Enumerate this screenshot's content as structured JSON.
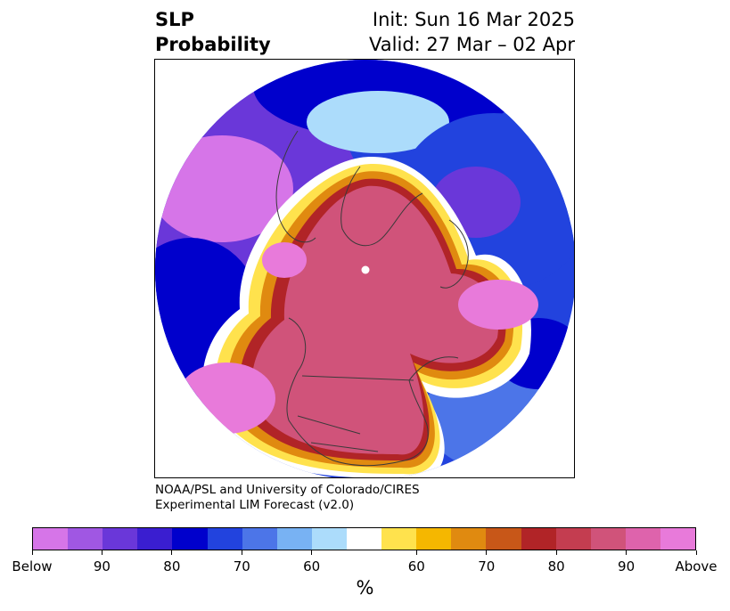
{
  "title": {
    "line1": "SLP",
    "line2": "Probability",
    "init": "Init: Sun 16 Mar 2025",
    "valid": "Valid: 27 Mar – 02 Apr"
  },
  "credit": {
    "line1": "NOAA/PSL and University of Colorado/CIRES",
    "line2": "Experimental LIM Forecast (v2.0)"
  },
  "colorbar": {
    "unit": "%",
    "colors": [
      "#d675e8",
      "#a057e3",
      "#6a37d9",
      "#3a1ed0",
      "#0000cc",
      "#2243de",
      "#4c75e8",
      "#78b2f3",
      "#acdcfb",
      "#ffffff",
      "#ffe24d",
      "#f5b700",
      "#e08a10",
      "#c85718",
      "#b12427",
      "#c43d50",
      "#d0537a",
      "#de63ac",
      "#e87ada"
    ],
    "tick_labels": [
      "Below",
      "90",
      "80",
      "70",
      "60",
      "60",
      "70",
      "80",
      "90",
      "Above"
    ]
  },
  "map": {
    "projection": "north-polar-stereographic",
    "palette": {
      "above_strong": "#e87ada",
      "above_high": "#d0537a",
      "above_mid": "#b12427",
      "above_low": "#e08a10",
      "above_weak": "#ffe24d",
      "neutral": "#ffffff",
      "below_weak": "#acdcfb",
      "below_low": "#4c75e8",
      "below_mid": "#2243de",
      "below_high": "#0000cc",
      "below_strong": "#6a37d9",
      "below_extreme": "#d675e8",
      "coastline": "#3a3a3a"
    }
  }
}
